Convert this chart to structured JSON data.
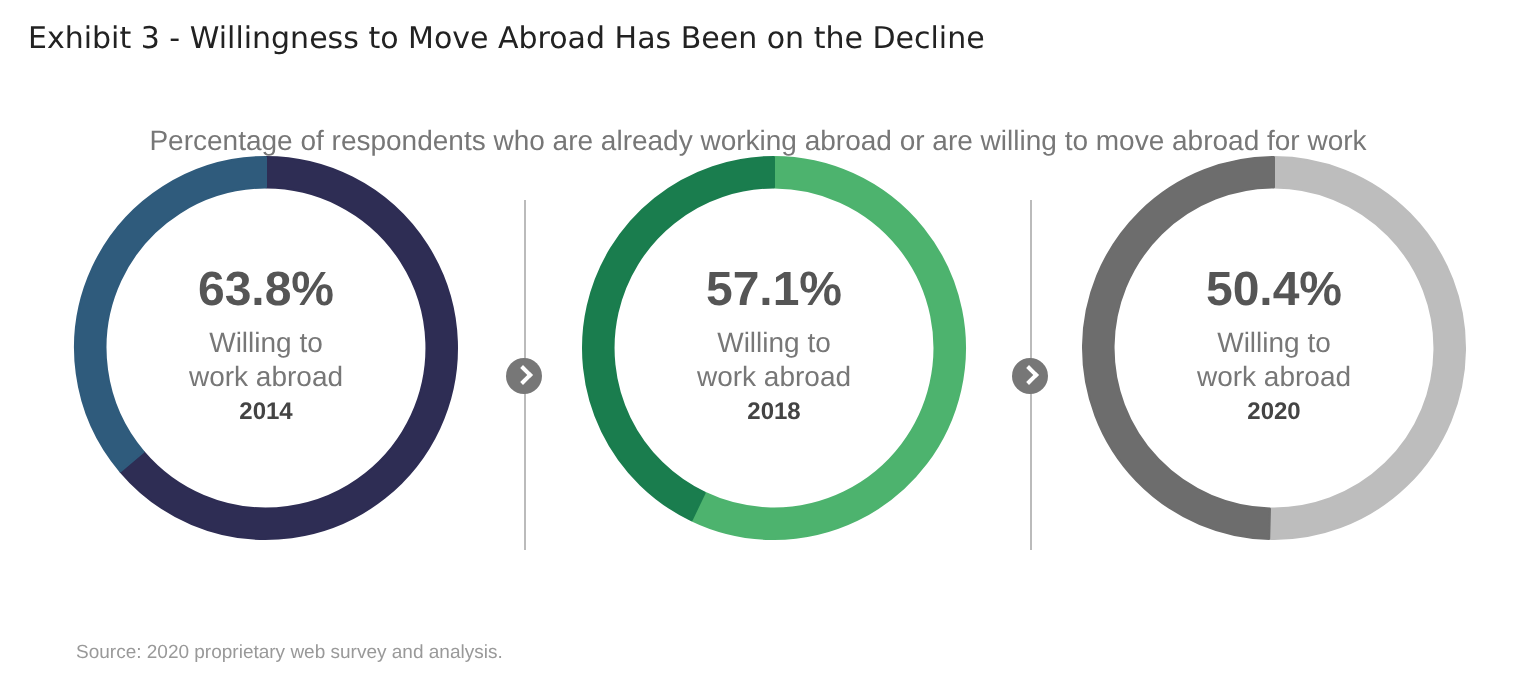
{
  "chart_data": [
    {
      "type": "donut",
      "title": "Exhibit 3 - Willingness to Move Abroad Has Been on the Decline",
      "subtitle": "Percentage of respondents who are already working abroad or are willing to move abroad for work",
      "categories": [
        "Willing to work abroad",
        null
      ],
      "values": [
        63.8,
        36.2
      ],
      "colors": [
        "#2e2d54",
        "#2f5b7c"
      ],
      "value_labels": [
        "63.8%",
        null
      ],
      "annotations": [
        "2014",
        "Source: 2020 proprietary web survey and analysis."
      ],
      "legend": false
    },
    {
      "type": "donut",
      "categories": [
        "Willing to work abroad",
        null
      ],
      "values": [
        57.1,
        42.9
      ],
      "colors": [
        "#4db36e",
        "#1a7d4e"
      ],
      "value_labels": [
        "57.1%",
        null
      ],
      "annotations": [
        "2018"
      ],
      "legend": false
    },
    {
      "type": "donut",
      "categories": [
        "Willing to work abroad",
        null
      ],
      "values": [
        50.4,
        49.6
      ],
      "colors": [
        "#bdbdbd",
        "#6d6d6d"
      ],
      "value_labels": [
        "50.4%",
        null
      ],
      "annotations": [
        "2020"
      ],
      "legend": false
    }
  ]
}
